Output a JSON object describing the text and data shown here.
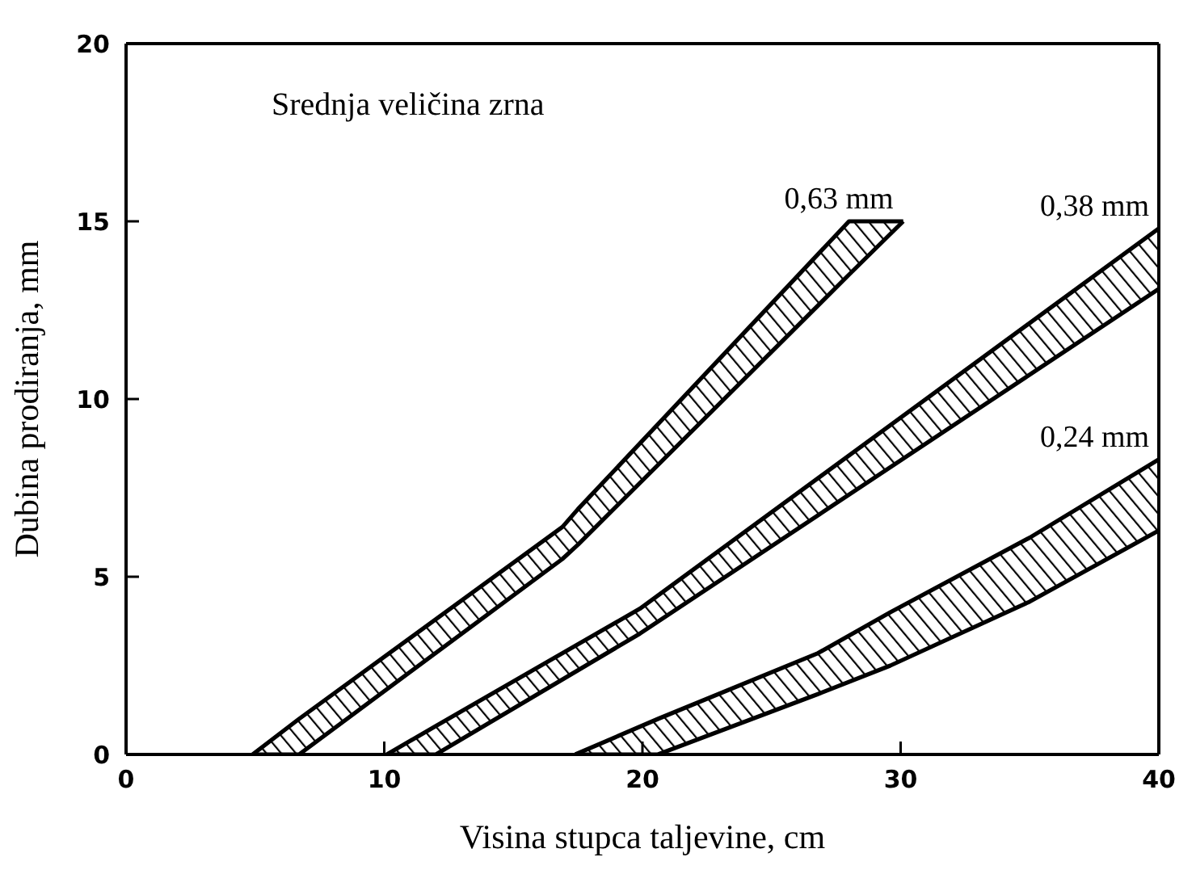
{
  "chart_data": {
    "type": "line",
    "xlabel": "Visina stupca taljevine, cm",
    "ylabel": "Dubina prodiranja, mm",
    "legend_title": "Srednja veličina zrna",
    "xlim": [
      0,
      40
    ],
    "xticks": [
      0,
      10,
      20,
      30,
      40
    ],
    "ylim": [
      0,
      20
    ],
    "yticks": [
      0,
      5,
      10,
      15,
      20
    ],
    "grid": false,
    "legend": false,
    "marker": "none",
    "line_style": "solid",
    "series": [
      {
        "name": "0,63 mm",
        "color": "#000000",
        "x": [
          4.9,
          6.7,
          16.9,
          17.5,
          28.0,
          30.1
        ],
        "values": [
          0,
          1.0,
          6.4,
          6.9,
          15,
          15
        ],
        "upper": [
          0,
          1.0,
          6.4,
          6.9,
          15,
          15
        ],
        "lower": [
          0,
          0,
          5.5,
          5.9,
          13.5,
          15
        ]
      },
      {
        "color": "#000000",
        "x": [
          4.9,
          6.7,
          16.9,
          17.5,
          28.0,
          30.1
        ],
        "values": [
          0,
          0,
          5.5,
          5.9,
          13.5,
          15
        ]
      },
      {
        "name": "0,38 mm",
        "color": "#000000",
        "x": [
          10.1,
          12.0,
          19.9,
          40
        ],
        "values": [
          0,
          0.8,
          4.1,
          14.8
        ],
        "upper": [
          0,
          0.8,
          4.1,
          14.8
        ],
        "lower": [
          0,
          0,
          3.4,
          13.1
        ]
      },
      {
        "color": "#000000",
        "x": [
          10.1,
          12.0,
          19.9,
          40
        ],
        "values": [
          0,
          0,
          3.4,
          13.1
        ]
      },
      {
        "name": "0,24 mm",
        "color": "#000000",
        "x": [
          17.4,
          20.6,
          26.8,
          29.6,
          35,
          40
        ],
        "values": [
          0,
          1.0,
          2.85,
          4.0,
          6.1,
          8.3
        ],
        "upper": [
          0,
          1.0,
          2.85,
          4.0,
          6.1,
          8.3
        ],
        "lower": [
          0,
          0,
          1.7,
          2.5,
          4.3,
          6.3
        ]
      },
      {
        "color": "#000000",
        "x": [
          17.4,
          20.6,
          26.8,
          29.6,
          35,
          40
        ],
        "values": [
          0,
          0,
          1.7,
          2.5,
          4.3,
          6.3
        ]
      }
    ]
  }
}
